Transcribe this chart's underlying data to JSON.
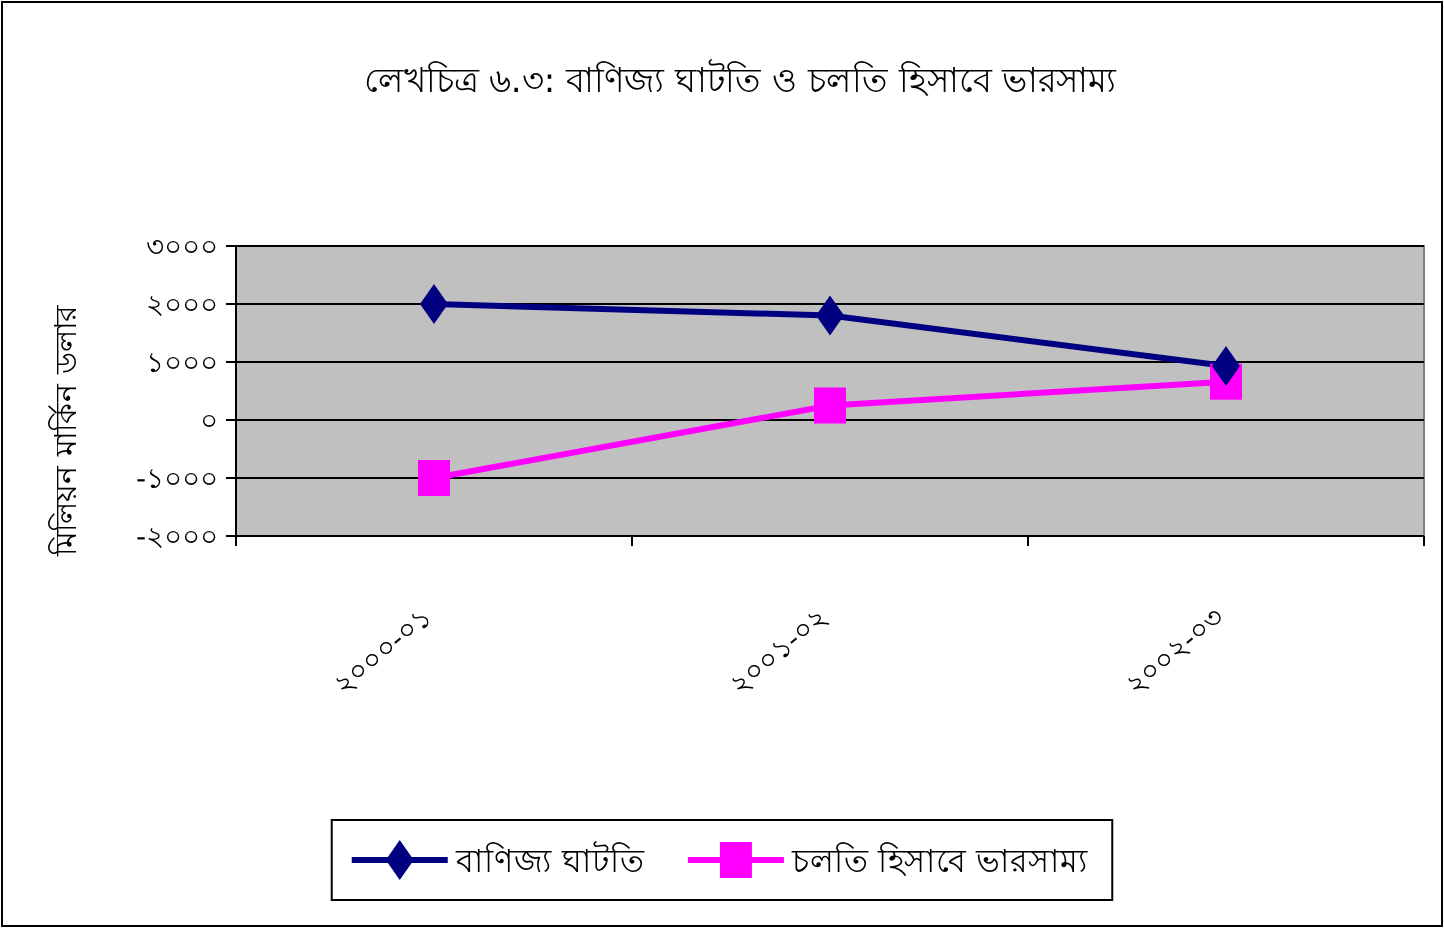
{
  "chart_data": {
    "type": "line",
    "title": "লেখচিত্র ৬.৩: বাণিজ্য ঘাটতি ও চলতি হিসাবে ভারসাম্য",
    "ylabel": "মিলিয়ন মার্কিন ডলার",
    "categories": [
      "২০০০-০১",
      "২০০১-০২",
      "২০০২-০৩"
    ],
    "series": [
      {
        "name": "বাণিজ্য ঘাটতি",
        "color": "#000080",
        "marker": "diamond",
        "values": [
          2000,
          1800,
          930
        ]
      },
      {
        "name": "চলতি হিসাবে ভারসাম্য",
        "color": "#ff00ff",
        "marker": "square",
        "values": [
          -1000,
          250,
          660
        ]
      }
    ],
    "ylim": [
      -2000,
      3000
    ],
    "yticks": [
      {
        "value": -2000,
        "label": "-২০০০"
      },
      {
        "value": -1000,
        "label": "-১০০০"
      },
      {
        "value": 0,
        "label": "০"
      },
      {
        "value": 1000,
        "label": "১০০০"
      },
      {
        "value": 2000,
        "label": "২০০০"
      },
      {
        "value": 3000,
        "label": "৩০০০"
      }
    ],
    "grid": "y",
    "legend": "bottom",
    "line_style": "solid"
  }
}
